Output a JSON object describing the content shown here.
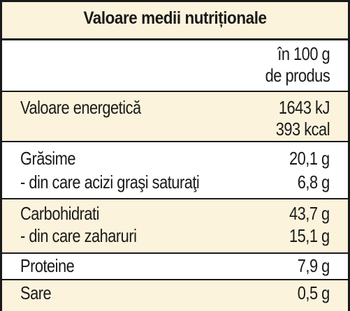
{
  "title": "Valoare medii nutriționale",
  "header": {
    "per_line1": "în 100 g",
    "per_line2": "de produs"
  },
  "rows": [
    {
      "label": "Valoare energetică",
      "value": "1643 kJ",
      "value2": "393 kcal"
    },
    {
      "label": "Grăsime",
      "value": "20,1 g"
    },
    {
      "label": "- din care acizi graşi saturaţi",
      "value": "6,8 g"
    },
    {
      "label": "Carbohidrati",
      "value": "43,7 g"
    },
    {
      "label": "- din care zaharuri",
      "value": "15,1 g"
    },
    {
      "label": "Proteine",
      "value": "7,9 g"
    },
    {
      "label": "Sare",
      "value": "0,5 g"
    }
  ],
  "colors": {
    "band": "#fbf3dc",
    "border": "#1a1a1a"
  }
}
